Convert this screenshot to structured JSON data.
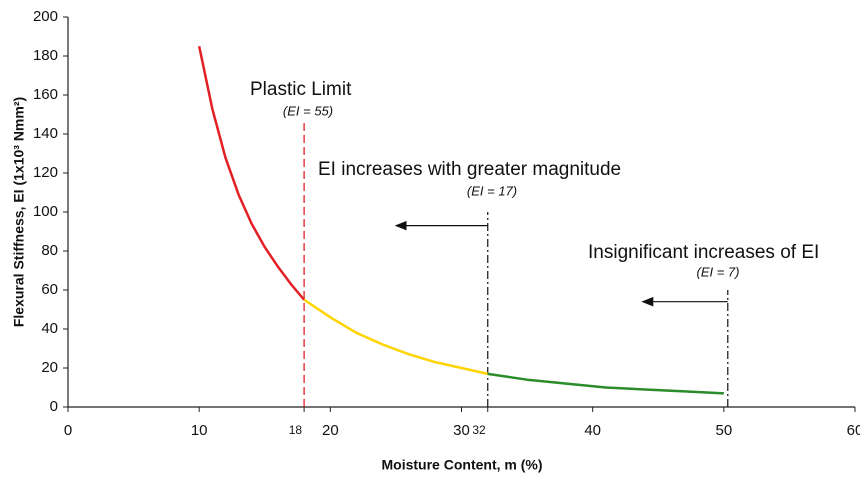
{
  "chart_data": {
    "type": "line",
    "x_label": "Moisture Content, m (%)",
    "y_label": "Flexural Stiffness, EI (1x10³ Nmm²)",
    "xlim": [
      0,
      60
    ],
    "xticks": [
      0,
      10,
      18,
      20,
      30,
      32,
      40,
      50,
      60
    ],
    "ylim": [
      0,
      200
    ],
    "yticks": [
      0,
      20,
      40,
      60,
      80,
      100,
      120,
      140,
      160,
      180,
      200
    ],
    "series": [
      {
        "color": "#e31e24",
        "x": [
          10,
          11,
          12,
          13,
          14,
          15,
          16,
          17,
          18
        ],
        "values": [
          185,
          153,
          128,
          109,
          94,
          82,
          72,
          63,
          55
        ]
      },
      {
        "color": "#ffd400",
        "x": [
          18,
          20,
          22,
          24,
          26,
          28,
          30,
          32
        ],
        "values": [
          55,
          46,
          38,
          32,
          27,
          23,
          20,
          17
        ]
      },
      {
        "color": "#2a8c2a",
        "x": [
          32,
          35,
          38,
          41,
          44,
          47,
          50
        ],
        "values": [
          17,
          14,
          12,
          10,
          9,
          8,
          7
        ]
      }
    ],
    "reference_lines": [
      {
        "x": 18,
        "y_top": 147,
        "color": "#e31e24",
        "dash": "8,4"
      },
      {
        "x": 32,
        "y_top": 100,
        "color": "#222222",
        "dash": "8,3,2,3"
      },
      {
        "x": 50.3,
        "y_top": 60,
        "color": "#222222",
        "dash": "8,3,2,3"
      }
    ],
    "arrows": [
      {
        "from": 32,
        "to": 25,
        "y": 93
      },
      {
        "from": 50.3,
        "to": 43.8,
        "y": 54
      }
    ],
    "annotations": [
      "Plastic Limit",
      "(EI = 55)",
      "EI increases with greater magnitude",
      "(EI = 17)",
      "Insignificant increases of EI",
      "(EI = 7)"
    ]
  }
}
